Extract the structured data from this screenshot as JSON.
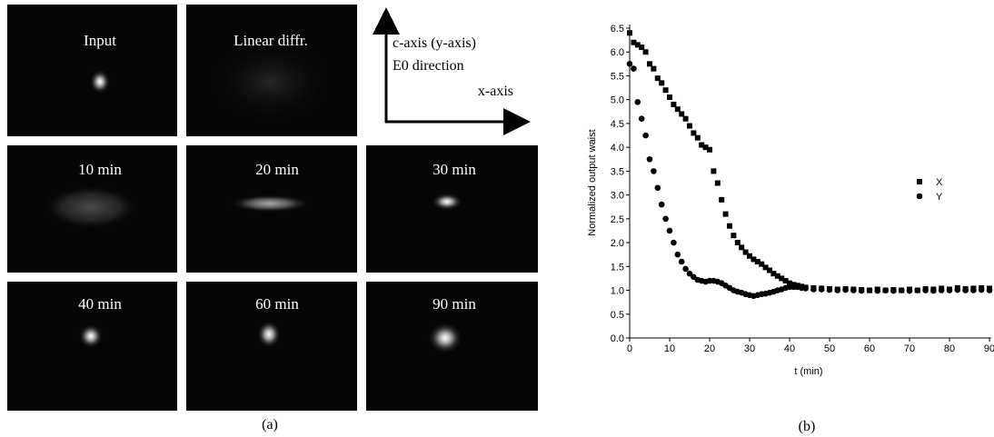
{
  "panel_a": {
    "frames": [
      {
        "label": "Input"
      },
      {
        "label": "Linear diffr."
      },
      {
        "label": "10 min"
      },
      {
        "label": "20 min"
      },
      {
        "label": "30 min"
      },
      {
        "label": "40 min"
      },
      {
        "label": "60 min"
      },
      {
        "label": "90 min"
      }
    ],
    "axes": {
      "vertical": "c-axis (y-axis)",
      "field": "E0 direction",
      "horizontal": "x-axis"
    },
    "caption": "(a)"
  },
  "chart_data": {
    "type": "scatter",
    "caption": "(b)",
    "x_label": "t (min)",
    "y_label": "Normalized output waist",
    "x": [
      0,
      1,
      2,
      3,
      4,
      5,
      6,
      7,
      8,
      9,
      10,
      11,
      12,
      13,
      14,
      15,
      16,
      17,
      18,
      19,
      20,
      21,
      22,
      23,
      24,
      25,
      26,
      27,
      28,
      29,
      30,
      31,
      32,
      33,
      34,
      35,
      36,
      37,
      38,
      39,
      40,
      41,
      42,
      43,
      44,
      46,
      48,
      50,
      52,
      54,
      56,
      58,
      60,
      62,
      64,
      66,
      68,
      70,
      72,
      74,
      76,
      78,
      80,
      82,
      84,
      86,
      88,
      90
    ],
    "series": [
      {
        "name": "X",
        "color": "#000000",
        "marker": "square",
        "values": [
          6.4,
          6.2,
          6.15,
          6.1,
          6.0,
          5.75,
          5.65,
          5.45,
          5.35,
          5.2,
          5.05,
          4.9,
          4.8,
          4.7,
          4.6,
          4.45,
          4.3,
          4.2,
          4.05,
          4.0,
          3.95,
          3.5,
          3.25,
          2.9,
          2.6,
          2.35,
          2.15,
          2.0,
          1.9,
          1.8,
          1.72,
          1.65,
          1.6,
          1.55,
          1.48,
          1.42,
          1.35,
          1.3,
          1.25,
          1.2,
          1.15,
          1.12,
          1.1,
          1.08,
          1.06,
          1.05,
          1.04,
          1.03,
          1.02,
          1.03,
          1.02,
          1.01,
          1.0,
          1.02,
          1.0,
          1.01,
          1.0,
          1.02,
          1.0,
          1.03,
          1.02,
          1.04,
          1.02,
          1.05,
          1.03,
          1.04,
          1.05,
          1.04
        ]
      },
      {
        "name": "Y",
        "color": "#000000",
        "marker": "circle",
        "values": [
          5.75,
          5.65,
          4.95,
          4.6,
          4.25,
          3.75,
          3.5,
          3.15,
          2.8,
          2.5,
          2.25,
          2.0,
          1.75,
          1.6,
          1.45,
          1.35,
          1.28,
          1.22,
          1.2,
          1.18,
          1.2,
          1.2,
          1.18,
          1.15,
          1.1,
          1.05,
          1.0,
          0.97,
          0.95,
          0.92,
          0.9,
          0.88,
          0.9,
          0.92,
          0.93,
          0.95,
          0.97,
          1.0,
          1.02,
          1.05,
          1.07,
          1.07,
          1.07,
          1.05,
          1.04,
          1.02,
          1.02,
          1.01,
          1.0,
          1.01,
          1.0,
          0.99,
          1.0,
          0.99,
          1.0,
          0.99,
          1.0,
          0.99,
          1.0,
          1.0,
          0.99,
          1.0,
          1.0,
          1.01,
          1.0,
          1.0,
          1.01,
          1.0
        ]
      }
    ],
    "xlim": [
      0,
      90
    ],
    "ylim": [
      0,
      6.5
    ],
    "xticks": [
      0,
      10,
      20,
      30,
      40,
      50,
      60,
      70,
      80,
      90
    ],
    "yticks": [
      {
        "value": 0,
        "label": "0.0"
      },
      0.5,
      {
        "value": 1,
        "label": "1.0"
      },
      1.5,
      {
        "value": 2,
        "label": "2.0"
      },
      2.5,
      {
        "value": 3,
        "label": "3.0"
      },
      3.5,
      {
        "value": 4,
        "label": "4.0"
      },
      4.5,
      {
        "value": 5,
        "label": "5.0"
      },
      5.5,
      {
        "value": 6,
        "label": "6.0"
      },
      6.5
    ],
    "legend": "right"
  }
}
